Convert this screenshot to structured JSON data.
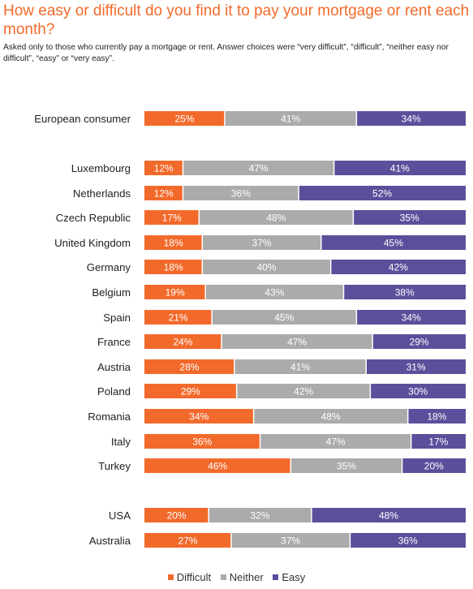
{
  "title": "How easy or difficult do you find it to pay your mortgage or rent each month?",
  "subtitle": "Asked only to those who currently pay a mortgage or rent. Answer choices were “very difficult”, “difficult”, “neither easy nor difficult”, “easy” or “very easy”.",
  "colors": {
    "difficult": "#F26A2B",
    "neither": "#ABABAB",
    "easy": "#5D4E9B"
  },
  "chart_data": {
    "type": "bar",
    "orientation": "horizontal",
    "stacked": true,
    "unit": "%",
    "title": "How easy or difficult do you find it to pay your mortgage or rent each month?",
    "categories": [
      "European consumer",
      "Luxembourg",
      "Netherlands",
      "Czech Republic",
      "United Kingdom",
      "Germany",
      "Belgium",
      "Spain",
      "France",
      "Austria",
      "Poland",
      "Romania",
      "Italy",
      "Turkey",
      "USA",
      "Australia"
    ],
    "series": [
      {
        "name": "Difficult",
        "values": [
          25,
          12,
          12,
          17,
          18,
          18,
          19,
          21,
          24,
          28,
          29,
          34,
          36,
          46,
          20,
          27
        ]
      },
      {
        "name": "Neither",
        "values": [
          41,
          47,
          36,
          48,
          37,
          40,
          43,
          45,
          47,
          41,
          42,
          48,
          47,
          35,
          32,
          37
        ]
      },
      {
        "name": "Easy",
        "values": [
          34,
          41,
          52,
          35,
          45,
          42,
          38,
          34,
          29,
          31,
          30,
          18,
          17,
          20,
          48,
          36
        ]
      }
    ],
    "legend_position": "bottom",
    "grid": false
  },
  "legend": [
    {
      "label": "Difficult",
      "color": "#F26A2B"
    },
    {
      "label": "Neither",
      "color": "#ABABAB"
    },
    {
      "label": "Easy",
      "color": "#5D4E9B"
    }
  ]
}
